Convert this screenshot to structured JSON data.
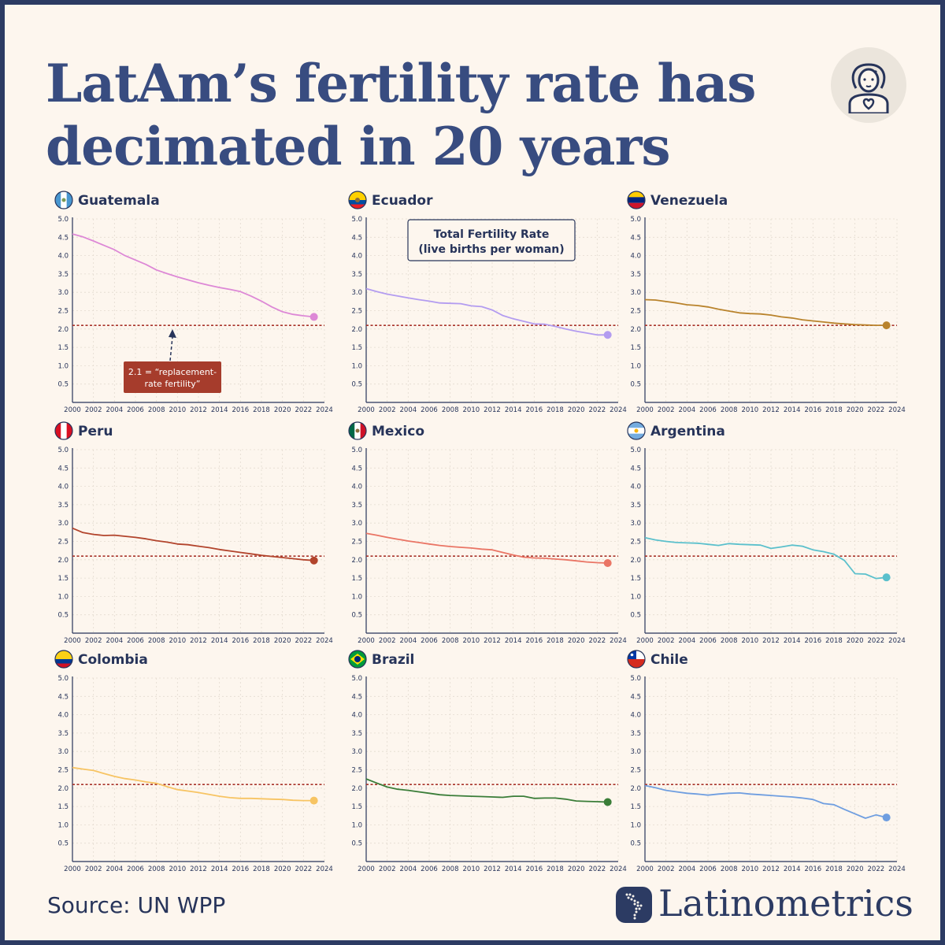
{
  "header": {
    "title": "LatAm’s fertility rate has decimated in 20 years",
    "avatar_icon": "woman-heart-icon"
  },
  "footer": {
    "source": "Source: UN WPP",
    "brand": "Latinometrics",
    "brand_icon": "latin-america-dots-icon"
  },
  "annotations": {
    "legend_line1": "Total Fertility Rate",
    "legend_line2": "(live births per woman)",
    "replacement_line1": "2.1 = “replacement-",
    "replacement_line2": "rate fertility”"
  },
  "colors": {
    "reference_line": "#a8332a",
    "callout_bg": "#a63c2c",
    "title": "#384c80"
  },
  "chart_data": [
    {
      "type": "line",
      "title": "Guatemala",
      "flag": "guatemala-flag-icon",
      "color": "#dd88d6",
      "x": [
        2000,
        2001,
        2002,
        2003,
        2004,
        2005,
        2006,
        2007,
        2008,
        2009,
        2010,
        2011,
        2012,
        2013,
        2014,
        2015,
        2016,
        2017,
        2018,
        2019,
        2020,
        2021,
        2022,
        2023
      ],
      "y": [
        4.59,
        4.51,
        4.4,
        4.28,
        4.16,
        4.0,
        3.88,
        3.76,
        3.61,
        3.51,
        3.42,
        3.34,
        3.26,
        3.19,
        3.13,
        3.08,
        3.02,
        2.9,
        2.76,
        2.6,
        2.47,
        2.4,
        2.36,
        2.33
      ],
      "reference": 2.1,
      "ylim": [
        0,
        5.0
      ],
      "xlim": [
        2000,
        2024
      ],
      "yticks": [
        0.5,
        1.0,
        1.5,
        2.0,
        2.5,
        3.0,
        3.5,
        4.0,
        4.5,
        5.0
      ],
      "xticks": [
        2000,
        2002,
        2004,
        2006,
        2008,
        2010,
        2012,
        2014,
        2016,
        2018,
        2020,
        2022,
        2024
      ]
    },
    {
      "type": "line",
      "title": "Ecuador",
      "flag": "ecuador-flag-icon",
      "color": "#b39cf0",
      "x": [
        2000,
        2001,
        2002,
        2003,
        2004,
        2005,
        2006,
        2007,
        2008,
        2009,
        2010,
        2011,
        2012,
        2013,
        2014,
        2015,
        2016,
        2017,
        2018,
        2019,
        2020,
        2021,
        2022,
        2023
      ],
      "y": [
        3.1,
        3.02,
        2.95,
        2.9,
        2.85,
        2.8,
        2.76,
        2.71,
        2.7,
        2.69,
        2.63,
        2.61,
        2.52,
        2.37,
        2.28,
        2.21,
        2.14,
        2.13,
        2.07,
        2.0,
        1.94,
        1.89,
        1.84,
        1.84
      ],
      "reference": 2.1,
      "ylim": [
        0,
        5.0
      ],
      "xlim": [
        2000,
        2024
      ],
      "yticks": [
        0.5,
        1.0,
        1.5,
        2.0,
        2.5,
        3.0,
        3.5,
        4.0,
        4.5,
        5.0
      ],
      "xticks": [
        2000,
        2002,
        2004,
        2006,
        2008,
        2010,
        2012,
        2014,
        2016,
        2018,
        2020,
        2022,
        2024
      ]
    },
    {
      "type": "line",
      "title": "Venezuela",
      "flag": "venezuela-flag-icon",
      "color": "#b9832c",
      "x": [
        2000,
        2001,
        2002,
        2003,
        2004,
        2005,
        2006,
        2007,
        2008,
        2009,
        2010,
        2011,
        2012,
        2013,
        2014,
        2015,
        2016,
        2017,
        2018,
        2019,
        2020,
        2021,
        2022,
        2023
      ],
      "y": [
        2.8,
        2.79,
        2.75,
        2.71,
        2.66,
        2.64,
        2.6,
        2.54,
        2.49,
        2.44,
        2.42,
        2.41,
        2.38,
        2.33,
        2.3,
        2.25,
        2.22,
        2.19,
        2.16,
        2.14,
        2.12,
        2.11,
        2.1,
        2.1
      ],
      "reference": 2.1,
      "ylim": [
        0,
        5.0
      ],
      "xlim": [
        2000,
        2024
      ],
      "yticks": [
        0.5,
        1.0,
        1.5,
        2.0,
        2.5,
        3.0,
        3.5,
        4.0,
        4.5,
        5.0
      ],
      "xticks": [
        2000,
        2002,
        2004,
        2006,
        2008,
        2010,
        2012,
        2014,
        2016,
        2018,
        2020,
        2022,
        2024
      ]
    },
    {
      "type": "line",
      "title": "Peru",
      "flag": "peru-flag-icon",
      "color": "#b2442c",
      "x": [
        2000,
        2001,
        2002,
        2003,
        2004,
        2005,
        2006,
        2007,
        2008,
        2009,
        2010,
        2011,
        2012,
        2013,
        2014,
        2015,
        2016,
        2017,
        2018,
        2019,
        2020,
        2021,
        2022,
        2023
      ],
      "y": [
        2.86,
        2.74,
        2.69,
        2.66,
        2.67,
        2.64,
        2.61,
        2.57,
        2.52,
        2.48,
        2.43,
        2.41,
        2.37,
        2.33,
        2.28,
        2.24,
        2.2,
        2.16,
        2.12,
        2.09,
        2.06,
        2.03,
        2.0,
        1.98
      ],
      "reference": 2.1,
      "ylim": [
        0,
        5.0
      ],
      "xlim": [
        2000,
        2024
      ],
      "yticks": [
        0.5,
        1.0,
        1.5,
        2.0,
        2.5,
        3.0,
        3.5,
        4.0,
        4.5,
        5.0
      ],
      "xticks": [
        2000,
        2002,
        2004,
        2006,
        2008,
        2010,
        2012,
        2014,
        2016,
        2018,
        2020,
        2022,
        2024
      ]
    },
    {
      "type": "line",
      "title": "Mexico",
      "flag": "mexico-flag-icon",
      "color": "#ea7565",
      "x": [
        2000,
        2001,
        2002,
        2003,
        2004,
        2005,
        2006,
        2007,
        2008,
        2009,
        2010,
        2011,
        2012,
        2013,
        2014,
        2015,
        2016,
        2017,
        2018,
        2019,
        2020,
        2021,
        2022,
        2023
      ],
      "y": [
        2.72,
        2.67,
        2.61,
        2.56,
        2.51,
        2.47,
        2.43,
        2.39,
        2.36,
        2.34,
        2.32,
        2.29,
        2.27,
        2.2,
        2.13,
        2.07,
        2.05,
        2.04,
        2.02,
        2.0,
        1.97,
        1.94,
        1.92,
        1.91
      ],
      "reference": 2.1,
      "ylim": [
        0,
        5.0
      ],
      "xlim": [
        2000,
        2024
      ],
      "yticks": [
        0.5,
        1.0,
        1.5,
        2.0,
        2.5,
        3.0,
        3.5,
        4.0,
        4.5,
        5.0
      ],
      "xticks": [
        2000,
        2002,
        2004,
        2006,
        2008,
        2010,
        2012,
        2014,
        2016,
        2018,
        2020,
        2022,
        2024
      ]
    },
    {
      "type": "line",
      "title": "Argentina",
      "flag": "argentina-flag-icon",
      "color": "#5bc0cc",
      "x": [
        2000,
        2001,
        2002,
        2003,
        2004,
        2005,
        2006,
        2007,
        2008,
        2009,
        2010,
        2011,
        2012,
        2013,
        2014,
        2015,
        2016,
        2017,
        2018,
        2019,
        2020,
        2021,
        2022,
        2023
      ],
      "y": [
        2.6,
        2.54,
        2.5,
        2.47,
        2.46,
        2.45,
        2.42,
        2.39,
        2.44,
        2.42,
        2.41,
        2.4,
        2.31,
        2.35,
        2.4,
        2.37,
        2.27,
        2.22,
        2.15,
        1.98,
        1.62,
        1.61,
        1.49,
        1.52
      ],
      "reference": 2.1,
      "ylim": [
        0,
        5.0
      ],
      "xlim": [
        2000,
        2024
      ],
      "yticks": [
        0.5,
        1.0,
        1.5,
        2.0,
        2.5,
        3.0,
        3.5,
        4.0,
        4.5,
        5.0
      ],
      "xticks": [
        2000,
        2002,
        2004,
        2006,
        2008,
        2010,
        2012,
        2014,
        2016,
        2018,
        2020,
        2022,
        2024
      ]
    },
    {
      "type": "line",
      "title": "Colombia",
      "flag": "colombia-flag-icon",
      "color": "#f7c463",
      "x": [
        2000,
        2001,
        2002,
        2003,
        2004,
        2005,
        2006,
        2007,
        2008,
        2009,
        2010,
        2011,
        2012,
        2013,
        2014,
        2015,
        2016,
        2017,
        2018,
        2019,
        2020,
        2021,
        2022,
        2023
      ],
      "y": [
        2.56,
        2.52,
        2.48,
        2.4,
        2.32,
        2.26,
        2.22,
        2.17,
        2.13,
        2.04,
        1.96,
        1.92,
        1.88,
        1.83,
        1.78,
        1.74,
        1.72,
        1.72,
        1.71,
        1.7,
        1.69,
        1.67,
        1.66,
        1.66
      ],
      "reference": 2.1,
      "ylim": [
        0,
        5.0
      ],
      "xlim": [
        2000,
        2024
      ],
      "yticks": [
        0.5,
        1.0,
        1.5,
        2.0,
        2.5,
        3.0,
        3.5,
        4.0,
        4.5,
        5.0
      ],
      "xticks": [
        2000,
        2002,
        2004,
        2006,
        2008,
        2010,
        2012,
        2014,
        2016,
        2018,
        2020,
        2022,
        2024
      ]
    },
    {
      "type": "line",
      "title": "Brazil",
      "flag": "brazil-flag-icon",
      "color": "#3a7d38",
      "x": [
        2000,
        2001,
        2002,
        2003,
        2004,
        2005,
        2006,
        2007,
        2008,
        2009,
        2010,
        2011,
        2012,
        2013,
        2014,
        2015,
        2016,
        2017,
        2018,
        2019,
        2020,
        2021,
        2022,
        2023
      ],
      "y": [
        2.25,
        2.14,
        2.03,
        1.97,
        1.94,
        1.9,
        1.86,
        1.82,
        1.8,
        1.79,
        1.78,
        1.77,
        1.76,
        1.75,
        1.78,
        1.78,
        1.72,
        1.73,
        1.73,
        1.7,
        1.65,
        1.64,
        1.63,
        1.62
      ],
      "reference": 2.1,
      "ylim": [
        0,
        5.0
      ],
      "xlim": [
        2000,
        2024
      ],
      "yticks": [
        0.5,
        1.0,
        1.5,
        2.0,
        2.5,
        3.0,
        3.5,
        4.0,
        4.5,
        5.0
      ],
      "xticks": [
        2000,
        2002,
        2004,
        2006,
        2008,
        2010,
        2012,
        2014,
        2016,
        2018,
        2020,
        2022,
        2024
      ]
    },
    {
      "type": "line",
      "title": "Chile",
      "flag": "chile-flag-icon",
      "color": "#6f9ee0",
      "x": [
        2000,
        2001,
        2002,
        2003,
        2004,
        2005,
        2006,
        2007,
        2008,
        2009,
        2010,
        2011,
        2012,
        2013,
        2014,
        2015,
        2016,
        2017,
        2018,
        2019,
        2020,
        2021,
        2022,
        2023
      ],
      "y": [
        2.07,
        2.01,
        1.94,
        1.9,
        1.86,
        1.84,
        1.81,
        1.84,
        1.86,
        1.87,
        1.84,
        1.82,
        1.8,
        1.78,
        1.76,
        1.73,
        1.69,
        1.58,
        1.55,
        1.42,
        1.3,
        1.18,
        1.27,
        1.2
      ],
      "reference": 2.1,
      "ylim": [
        0,
        5.0
      ],
      "xlim": [
        2000,
        2024
      ],
      "yticks": [
        0.5,
        1.0,
        1.5,
        2.0,
        2.5,
        3.0,
        3.5,
        4.0,
        4.5,
        5.0
      ],
      "xticks": [
        2000,
        2002,
        2004,
        2006,
        2008,
        2010,
        2012,
        2014,
        2016,
        2018,
        2020,
        2022,
        2024
      ]
    }
  ]
}
